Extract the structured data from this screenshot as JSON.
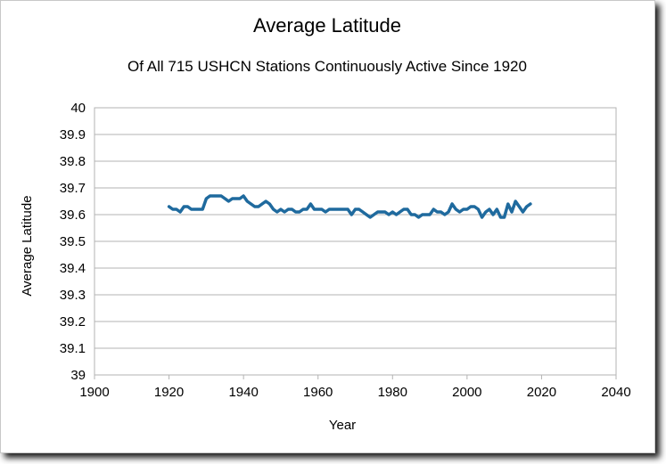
{
  "chart_data": {
    "type": "line",
    "title": "Average  Latitude",
    "subtitle": "Of All 715 USHCN Stations Continuously Active Since 1920",
    "xlabel": "Year",
    "ylabel": "Average  Latitude",
    "xlim": [
      1900,
      2040
    ],
    "ylim": [
      39,
      40
    ],
    "x_ticks": [
      "1900",
      "1920",
      "1940",
      "1960",
      "1980",
      "2000",
      "2020",
      "2040"
    ],
    "y_ticks": [
      "39",
      "39.1",
      "39.2",
      "39.3",
      "39.4",
      "39.5",
      "39.6",
      "39.7",
      "39.8",
      "39.9",
      "40"
    ],
    "grid": true,
    "line_color": "#1f6a9e",
    "series": [
      {
        "x": [
          1920,
          1921,
          1922,
          1923,
          1924,
          1925,
          1926,
          1927,
          1928,
          1929,
          1930,
          1931,
          1932,
          1933,
          1934,
          1935,
          1936,
          1937,
          1938,
          1939,
          1940,
          1941,
          1942,
          1943,
          1944,
          1945,
          1946,
          1947,
          1948,
          1949,
          1950,
          1951,
          1952,
          1953,
          1954,
          1955,
          1956,
          1957,
          1958,
          1959,
          1960,
          1961,
          1962,
          1963,
          1964,
          1965,
          1966,
          1967,
          1968,
          1969,
          1970,
          1971,
          1972,
          1973,
          1974,
          1975,
          1976,
          1977,
          1978,
          1979,
          1980,
          1981,
          1982,
          1983,
          1984,
          1985,
          1986,
          1987,
          1988,
          1989,
          1990,
          1991,
          1992,
          1993,
          1994,
          1995,
          1996,
          1997,
          1998,
          1999,
          2000,
          2001,
          2002,
          2003,
          2004,
          2005,
          2006,
          2007,
          2008,
          2009,
          2010,
          2011,
          2012,
          2013,
          2014,
          2015,
          2016,
          2017
        ],
        "y": [
          39.63,
          39.62,
          39.62,
          39.61,
          39.63,
          39.63,
          39.62,
          39.62,
          39.62,
          39.62,
          39.66,
          39.67,
          39.67,
          39.67,
          39.67,
          39.66,
          39.65,
          39.66,
          39.66,
          39.66,
          39.67,
          39.65,
          39.64,
          39.63,
          39.63,
          39.64,
          39.65,
          39.64,
          39.62,
          39.61,
          39.62,
          39.61,
          39.62,
          39.62,
          39.61,
          39.61,
          39.62,
          39.62,
          39.64,
          39.62,
          39.62,
          39.62,
          39.61,
          39.62,
          39.62,
          39.62,
          39.62,
          39.62,
          39.62,
          39.6,
          39.62,
          39.62,
          39.61,
          39.6,
          39.59,
          39.6,
          39.61,
          39.61,
          39.61,
          39.6,
          39.61,
          39.6,
          39.61,
          39.62,
          39.62,
          39.6,
          39.6,
          39.59,
          39.6,
          39.6,
          39.6,
          39.62,
          39.61,
          39.61,
          39.6,
          39.61,
          39.64,
          39.62,
          39.61,
          39.62,
          39.62,
          39.63,
          39.63,
          39.62,
          39.59,
          39.61,
          39.62,
          39.6,
          39.62,
          39.59,
          39.59,
          39.64,
          39.61,
          39.65,
          39.63,
          39.61,
          39.63,
          39.64
        ]
      }
    ]
  }
}
